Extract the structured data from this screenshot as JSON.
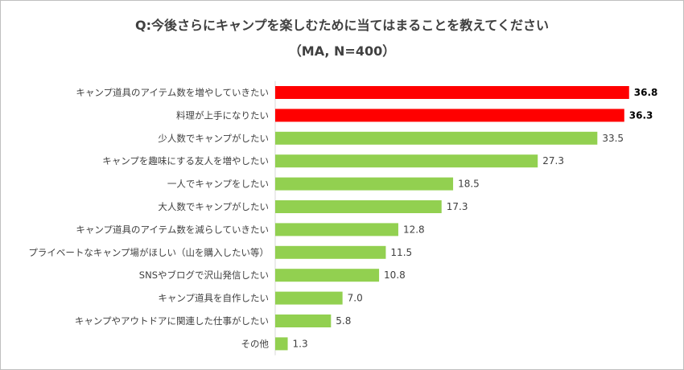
{
  "chart_data": {
    "type": "bar",
    "orientation": "horizontal",
    "title": "Q:今後さらにキャンプを楽しむために当てはまることを教えてください",
    "subtitle": "（MA, N=400）",
    "categories": [
      "キャンプ道具のアイテム数を増やしていきたい",
      "料理が上手になりたい",
      "少人数でキャンプがしたい",
      "キャンプを趣味にする友人を増やしたい",
      "一人でキャンプをしたい",
      "大人数でキャンプがしたい",
      "キャンプ道具のアイテム数を減らしていきたい",
      "プライベートなキャンプ場がほしい（山を購入したい等）",
      "SNSやブログで沢山発信したい",
      "キャンプ道具を自作したい",
      "キャンプやアウトドアに関連した仕事がしたい",
      "その他"
    ],
    "values": [
      36.8,
      36.3,
      33.5,
      27.3,
      18.5,
      17.3,
      12.8,
      11.5,
      10.8,
      7.0,
      5.8,
      1.3
    ],
    "value_labels": [
      "36.8",
      "36.3",
      "33.5",
      "27.3",
      "18.5",
      "17.3",
      "12.8",
      "11.5",
      "10.8",
      "7.0",
      "5.8",
      "1.3"
    ],
    "highlight_count": 2,
    "xlim": [
      0,
      40
    ],
    "grid": false,
    "legend": "none",
    "colors": {
      "highlight": "#ff0000",
      "default": "#92d050",
      "axis": "#d9d9d9"
    }
  }
}
